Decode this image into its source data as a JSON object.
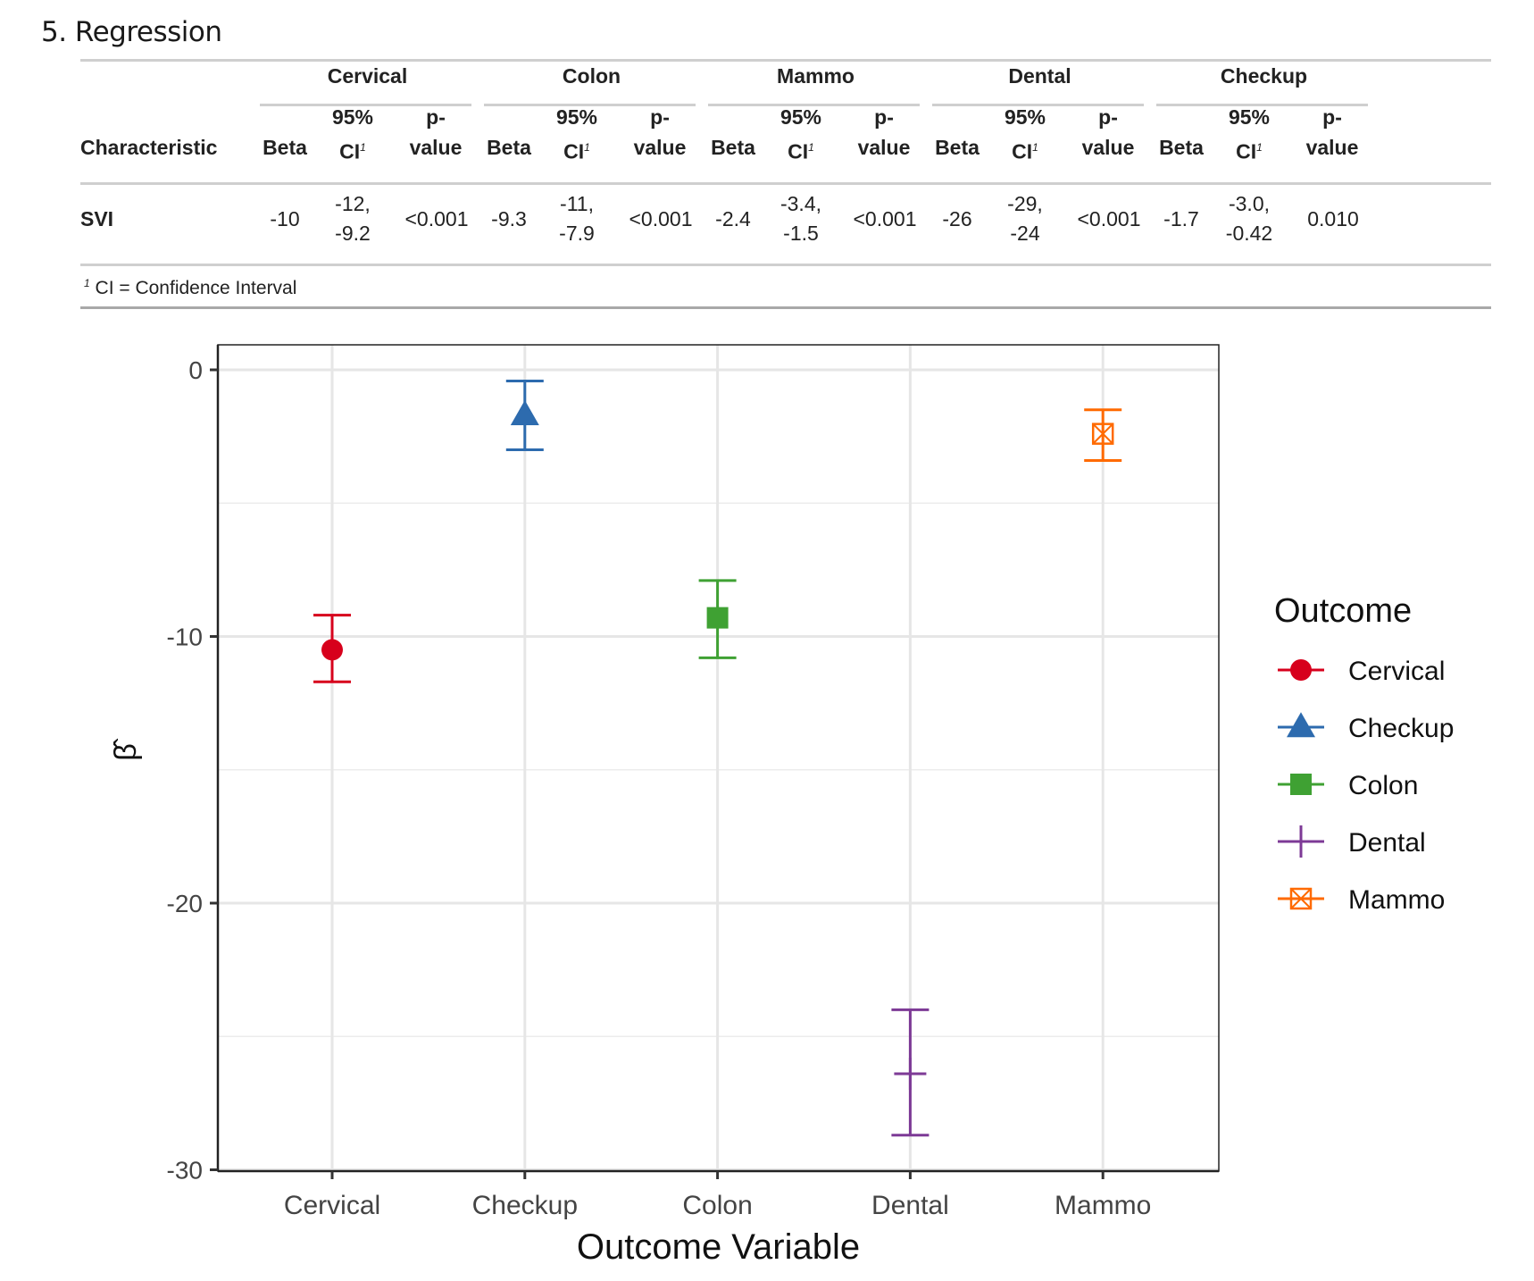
{
  "section": {
    "title": "5. Regression"
  },
  "table": {
    "row_header_label": "Characteristic",
    "groups": [
      {
        "name": "Cervical",
        "beta": "-10",
        "ci_low": "-12,",
        "ci_high": "-9.2",
        "p": "<0.001"
      },
      {
        "name": "Colon",
        "beta": "-9.3",
        "ci_low": "-11,",
        "ci_high": "-7.9",
        "p": "<0.001"
      },
      {
        "name": "Mammo",
        "beta": "-2.4",
        "ci_low": "-3.4,",
        "ci_high": "-1.5",
        "p": "<0.001"
      },
      {
        "name": "Dental",
        "beta": "-26",
        "ci_low": "-29,",
        "ci_high": "-24",
        "p": "<0.001"
      },
      {
        "name": "Checkup",
        "beta": "-1.7",
        "ci_low": "-3.0,",
        "ci_high": "-0.42",
        "p": "0.010"
      }
    ],
    "col_labels": {
      "beta": "Beta",
      "ci_top": "95%",
      "ci_bottom": "CI",
      "ci_sup": "1",
      "p_top": "p-",
      "p_bottom": "value"
    },
    "row_label": "SVI",
    "footnote_marker": "1",
    "footnote": "CI = Confidence Interval"
  },
  "chart_data": {
    "type": "scatter",
    "subtype": "point-with-errorbars",
    "categories": [
      "Cervical",
      "Checkup",
      "Colon",
      "Dental",
      "Mammo"
    ],
    "series": [
      {
        "name": "Cervical",
        "x": "Cervical",
        "estimate": -10.5,
        "ci_low": -11.7,
        "ci_high": -9.2,
        "color": "#D7001C",
        "shape": "circle"
      },
      {
        "name": "Checkup",
        "x": "Checkup",
        "estimate": -1.7,
        "ci_low": -3.0,
        "ci_high": -0.42,
        "color": "#2D6BAE",
        "shape": "triangle"
      },
      {
        "name": "Colon",
        "x": "Colon",
        "estimate": -9.3,
        "ci_low": -10.8,
        "ci_high": -7.9,
        "color": "#3FA133",
        "shape": "square"
      },
      {
        "name": "Dental",
        "x": "Dental",
        "estimate": -26.4,
        "ci_low": -28.7,
        "ci_high": -24.0,
        "color": "#7D3A96",
        "shape": "plus"
      },
      {
        "name": "Mammo",
        "x": "Mammo",
        "estimate": -2.4,
        "ci_low": -3.4,
        "ci_high": -1.5,
        "color": "#FF6A00",
        "shape": "square-cross"
      }
    ],
    "xlabel": "Outcome Variable",
    "ylabel": "β̂",
    "yticks": [
      0,
      -10,
      -20,
      -30
    ],
    "ytick_labels": [
      "0",
      "-10",
      "-20",
      "-30"
    ],
    "ylim": [
      -30,
      1
    ],
    "grid": true,
    "legend": {
      "title": "Outcome",
      "placement": "right",
      "entries": [
        "Cervical",
        "Checkup",
        "Colon",
        "Dental",
        "Mammo"
      ]
    }
  }
}
